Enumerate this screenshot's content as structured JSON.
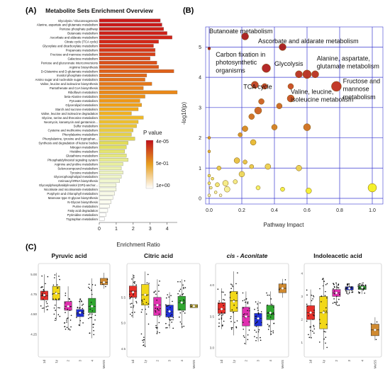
{
  "panels": {
    "a_letter": "(A)",
    "b_letter": "(B)",
    "c_letter": "(C)"
  },
  "chart_data": [
    {
      "type": "bar",
      "orientation": "horizontal",
      "title": "Metabolite Sets Enrichment Overview",
      "xlabel": "Enrichment Ratio",
      "xlim": [
        0,
        4.6
      ],
      "xticks": [
        "0",
        "1",
        "2",
        "3",
        "4"
      ],
      "legend": {
        "title": "P value",
        "ticks": [
          "4e-05",
          "5e-01",
          "1e+00"
        ],
        "colors": [
          "#c0101a",
          "#e8a020",
          "#ffffff"
        ],
        "placement": "right"
      },
      "categories": [
        "Glycolysis / Gluconeogenesis",
        "Alanine, aspartate and glutamate metabolism",
        "Pentose phosphate pathway",
        "Butanoate metabolism",
        "Ascorbate and aldarate metabolism",
        "Citrate cycle (TCA cycle)",
        "Glyoxylate and dicarboxylate metabolism",
        "Propanoate metabolism",
        "Fructose and mannose metabolism",
        "Galactose metabolism",
        "Pentose and glucuronate interconversions",
        "Arginine biosynthesis",
        "D-Glutamine and D-glutamate metabolism",
        "Inositol phosphate metabolism",
        "Amino sugar and nucleotide sugar metabolism",
        "Valine, leucine and isoleucine biosynthesis",
        "Pantothenate and CoA biosynthesis",
        "Riboflavin metabolism",
        "beta-Alanine metabolism",
        "Pyruvate metabolism",
        "Glycerolipid metabolism",
        "Starch and sucrose metabolism",
        "Valine, leucine and isoleucine degradation",
        "Glycine, serine and threonine metabolism",
        "Neomycin, kanamycin and gentamicin...",
        "Sulfur metabolism",
        "Cysteine and methionine metabolism",
        "Phenylalanine metabolism",
        "Phenylalanine, tyrosine and tryptophan...",
        "Synthesis and degradation of ketone bodies",
        "Nitrogen metabolism",
        "Histidine metabolism",
        "Glutathione metabolism",
        "Phosphatidylinositol signaling system",
        "Arginine and proline metabolism",
        "Selenocompound metabolism",
        "Tyrosine metabolism",
        "Glycerophospholipid metabolism",
        "Aminoacyl-tRNA biosynthesis",
        "Glycosylphosphatidylinositol (GPI)-anchor...",
        "Nicotinate and nicotinamide metabolism",
        "Porphyrin and chlorophyll metabolism",
        "Mannose type O-glycan biosynthesis",
        "N-Glycan biosynthesis",
        "Purine metabolism",
        "Fatty acid degradation",
        "Pyrimidine metabolism",
        "Tryptophan metabolism"
      ],
      "values": [
        3.6,
        3.7,
        3.8,
        4.0,
        4.3,
        3.5,
        3.2,
        3.3,
        3.3,
        3.0,
        3.4,
        3.5,
        4.4,
        2.8,
        2.7,
        3.1,
        2.6,
        4.6,
        2.7,
        2.4,
        2.5,
        2.3,
        1.9,
        2.6,
        2.3,
        2.2,
        2.0,
        1.9,
        2.1,
        1.7,
        1.6,
        1.5,
        1.6,
        1.7,
        1.4,
        1.3,
        1.4,
        1.3,
        1.2,
        1.0,
        1.0,
        0.9,
        0.8,
        0.7,
        0.6,
        0.5,
        0.4,
        0.3
      ],
      "pvalue_colors": [
        "#c81a1a",
        "#c81a1a",
        "#cc2018",
        "#cc2018",
        "#d02418",
        "#d22818",
        "#d43018",
        "#d63818",
        "#d84018",
        "#da4818",
        "#dc5018",
        "#de5818",
        "#e06018",
        "#e26818",
        "#e47018",
        "#e67818",
        "#e88018",
        "#ea8818",
        "#ec9018",
        "#ee9818",
        "#f0a018",
        "#f2a818",
        "#f0b020",
        "#eeb828",
        "#ecbe30",
        "#eac438",
        "#e8ca40",
        "#e6d048",
        "#e4d650",
        "#e2dc58",
        "#e2e060",
        "#e4e470",
        "#e6e880",
        "#e8ec90",
        "#eaf0a0",
        "#ecf2b0",
        "#eef4c0",
        "#f0f6c8",
        "#f2f8d0",
        "#f4f8d8",
        "#f6fae0",
        "#f8fae6",
        "#fafcec",
        "#fbfcf0",
        "#fcfdf4",
        "#fdfef8",
        "#fefefb",
        "#ffffff"
      ]
    },
    {
      "type": "scatter",
      "xlabel": "Pathway Impact",
      "ylabel": "-log10(p)",
      "xlim": [
        0,
        1.0
      ],
      "ylim": [
        0,
        5.5
      ],
      "xticks": [
        "0.0",
        "0.2",
        "0.4",
        "0.6",
        "0.8",
        "1.0"
      ],
      "yticks": [
        "0",
        "1",
        "2",
        "3",
        "4",
        "5"
      ],
      "grid": true,
      "points": [
        {
          "x": 0.22,
          "y": 5.35,
          "r": 5,
          "color": "#a81a1a"
        },
        {
          "x": 0.45,
          "y": 5.0,
          "r": 5,
          "color": "#a81a1a"
        },
        {
          "x": 0.0,
          "y": 4.95,
          "r": 2,
          "color": "#a81a1a"
        },
        {
          "x": 0.35,
          "y": 4.3,
          "r": 6,
          "color": "#b01e1e"
        },
        {
          "x": 0.55,
          "y": 4.1,
          "r": 5,
          "color": "#b83020"
        },
        {
          "x": 0.6,
          "y": 4.1,
          "r": 6,
          "color": "#b83020"
        },
        {
          "x": 0.65,
          "y": 4.1,
          "r": 5,
          "color": "#b83020"
        },
        {
          "x": 0.78,
          "y": 3.7,
          "r": 7,
          "color": "#c03020"
        },
        {
          "x": 0.28,
          "y": 3.75,
          "r": 5,
          "color": "#c04020"
        },
        {
          "x": 0.34,
          "y": 3.7,
          "r": 4,
          "color": "#c04020"
        },
        {
          "x": 0.5,
          "y": 3.7,
          "r": 4,
          "color": "#c84a20"
        },
        {
          "x": 0.5,
          "y": 3.3,
          "r": 5,
          "color": "#c85020"
        },
        {
          "x": 0.32,
          "y": 3.2,
          "r": 4,
          "color": "#cc6020"
        },
        {
          "x": 0.3,
          "y": 2.9,
          "r": 5,
          "color": "#cc6020"
        },
        {
          "x": 0.43,
          "y": 3.05,
          "r": 4,
          "color": "#cc6820"
        },
        {
          "x": 0.26,
          "y": 2.7,
          "r": 4,
          "color": "#d07020"
        },
        {
          "x": 0.6,
          "y": 2.35,
          "r": 5,
          "color": "#d07020"
        },
        {
          "x": 0.4,
          "y": 2.35,
          "r": 4,
          "color": "#d48020"
        },
        {
          "x": 0.22,
          "y": 2.3,
          "r": 4,
          "color": "#d88820"
        },
        {
          "x": 0.19,
          "y": 2.1,
          "r": 3,
          "color": "#d89020"
        },
        {
          "x": 0.0,
          "y": 2.0,
          "r": 2,
          "color": "#e09820"
        },
        {
          "x": 0.0,
          "y": 1.55,
          "r": 2,
          "color": "#e8b030"
        },
        {
          "x": 0.27,
          "y": 1.85,
          "r": 4,
          "color": "#e8b830"
        },
        {
          "x": 0.17,
          "y": 1.25,
          "r": 4,
          "color": "#e8c040"
        },
        {
          "x": 0.22,
          "y": 1.2,
          "r": 3,
          "color": "#e8c040"
        },
        {
          "x": 0.26,
          "y": 1.05,
          "r": 3,
          "color": "#eac848"
        },
        {
          "x": 0.06,
          "y": 1.0,
          "r": 3,
          "color": "#eac848"
        },
        {
          "x": 0.36,
          "y": 1.05,
          "r": 4,
          "color": "#ecd050"
        },
        {
          "x": 0.55,
          "y": 1.0,
          "r": 4,
          "color": "#ecd050"
        },
        {
          "x": 0.2,
          "y": 0.8,
          "r": 4,
          "color": "#eed858"
        },
        {
          "x": 0.0,
          "y": 0.75,
          "r": 2,
          "color": "#f0e060"
        },
        {
          "x": 0.02,
          "y": 0.65,
          "r": 2,
          "color": "#f0e060"
        },
        {
          "x": 0.0,
          "y": 0.5,
          "r": 2,
          "color": "#f2e670"
        },
        {
          "x": 0.05,
          "y": 0.45,
          "r": 3,
          "color": "#f2e670"
        },
        {
          "x": 0.1,
          "y": 0.5,
          "r": 4,
          "color": "#f4ea80"
        },
        {
          "x": 0.16,
          "y": 0.55,
          "r": 3,
          "color": "#f4ea80"
        },
        {
          "x": 0.11,
          "y": 0.3,
          "r": 4,
          "color": "#f6ee90"
        },
        {
          "x": 0.01,
          "y": 0.35,
          "r": 2,
          "color": "#f6ee90"
        },
        {
          "x": 0.04,
          "y": 0.2,
          "r": 2,
          "color": "#f8f2a0"
        },
        {
          "x": 0.0,
          "y": 0.1,
          "r": 2,
          "color": "#f8f4b0"
        },
        {
          "x": 0.07,
          "y": 0.1,
          "r": 2,
          "color": "#faf6c0"
        },
        {
          "x": 0.3,
          "y": 0.35,
          "r": 3,
          "color": "#f6f060"
        },
        {
          "x": 0.45,
          "y": 0.3,
          "r": 3,
          "color": "#f4f040"
        },
        {
          "x": 0.61,
          "y": 0.25,
          "r": 4,
          "color": "#f4f030"
        },
        {
          "x": 1.0,
          "y": 0.35,
          "r": 6,
          "color": "#f4f020"
        }
      ],
      "annotations": [
        {
          "text": "Butanoate metabolism",
          "x": 0.0,
          "y": 5.45
        },
        {
          "text": "Ascorbate and aldarate metabolism",
          "x": 0.3,
          "y": 5.12
        },
        {
          "text": "Carbon fixation in",
          "x": 0.04,
          "y": 4.68
        },
        {
          "text": "photosynthetic",
          "x": 0.04,
          "y": 4.42
        },
        {
          "text": "organisms",
          "x": 0.04,
          "y": 4.16
        },
        {
          "text": "Glycolysis",
          "x": 0.4,
          "y": 4.38
        },
        {
          "text": "Alanine, aspartate,",
          "x": 0.66,
          "y": 4.55
        },
        {
          "text": "glutamate metabolism",
          "x": 0.66,
          "y": 4.29
        },
        {
          "text": "TCA cycle",
          "x": 0.21,
          "y": 3.62
        },
        {
          "text": "Fructose and",
          "x": 0.82,
          "y": 3.8
        },
        {
          "text": "mannose",
          "x": 0.82,
          "y": 3.54
        },
        {
          "text": "metabolism",
          "x": 0.82,
          "y": 3.28
        },
        {
          "text": "Valine, leucine,",
          "x": 0.5,
          "y": 3.45
        },
        {
          "text": "isoleucine metabolism",
          "x": 0.5,
          "y": 3.19
        }
      ]
    },
    {
      "type": "box",
      "title": "Pyruvic acid",
      "categories": [
        "1d",
        "1y",
        "2",
        "3",
        "4",
        "MeSS"
      ],
      "ylim": [
        4.0,
        5.1
      ],
      "yticks": [
        "4.25",
        "4.50",
        "4.75",
        "5.00"
      ],
      "boxes": [
        {
          "q1": 4.68,
          "median": 4.73,
          "q3": 4.79,
          "min": 4.52,
          "max": 5.0,
          "mean": 4.74,
          "color": "#e8302a"
        },
        {
          "q1": 4.68,
          "median": 4.76,
          "q3": 4.85,
          "min": 4.42,
          "max": 5.02,
          "mean": 4.76,
          "color": "#f2d818"
        },
        {
          "q1": 4.55,
          "median": 4.6,
          "q3": 4.66,
          "min": 4.3,
          "max": 4.85,
          "mean": 4.6,
          "color": "#e030b0"
        },
        {
          "q1": 4.47,
          "median": 4.52,
          "q3": 4.56,
          "min": 4.35,
          "max": 4.7,
          "mean": 4.52,
          "color": "#2030d8"
        },
        {
          "q1": 4.52,
          "median": 4.6,
          "q3": 4.7,
          "min": 4.2,
          "max": 4.95,
          "mean": 4.6,
          "color": "#30a830"
        },
        {
          "q1": 4.87,
          "median": 4.9,
          "q3": 4.95,
          "min": 4.82,
          "max": 5.02,
          "mean": 4.9,
          "color": "#d08a30"
        }
      ]
    },
    {
      "type": "box",
      "title": "Citric acid",
      "categories": [
        "1d",
        "1y",
        "2",
        "3",
        "4",
        "MeSS"
      ],
      "ylim": [
        4.4,
        6.1
      ],
      "yticks": [
        "4.5",
        "5.0",
        "5.5"
      ],
      "boxes": [
        {
          "q1": 5.5,
          "median": 5.62,
          "q3": 5.72,
          "min": 5.1,
          "max": 5.95,
          "mean": 5.6,
          "color": "#e8302a"
        },
        {
          "q1": 5.35,
          "median": 5.55,
          "q3": 5.75,
          "min": 4.55,
          "max": 6.0,
          "mean": 5.55,
          "color": "#f2d818"
        },
        {
          "q1": 5.15,
          "median": 5.35,
          "q3": 5.5,
          "min": 4.8,
          "max": 5.85,
          "mean": 5.35,
          "color": "#e030b0"
        },
        {
          "q1": 5.12,
          "median": 5.22,
          "q3": 5.35,
          "min": 4.9,
          "max": 5.6,
          "mean": 5.23,
          "color": "#2030d8"
        },
        {
          "q1": 5.25,
          "median": 5.4,
          "q3": 5.52,
          "min": 4.9,
          "max": 5.85,
          "mean": 5.4,
          "color": "#30a830"
        },
        {
          "q1": 5.3,
          "median": 5.33,
          "q3": 5.36,
          "min": 5.3,
          "max": 5.36,
          "mean": 5.33,
          "color": "#c8b030"
        }
      ]
    },
    {
      "type": "box",
      "title": "cis - Aconitate",
      "categories": [
        "1d",
        "1y",
        "2",
        "3",
        "4",
        "MeSS"
      ],
      "ylim": [
        2.9,
        4.3
      ],
      "yticks": [
        "3.0",
        "3.5",
        "4.0"
      ],
      "boxes": [
        {
          "q1": 3.55,
          "median": 3.62,
          "q3": 3.72,
          "min": 3.3,
          "max": 3.95,
          "mean": 3.62,
          "color": "#e8302a"
        },
        {
          "q1": 3.58,
          "median": 3.75,
          "q3": 3.9,
          "min": 3.2,
          "max": 4.22,
          "mean": 3.74,
          "color": "#f2d818"
        },
        {
          "q1": 3.35,
          "median": 3.5,
          "q3": 3.65,
          "min": 3.05,
          "max": 3.9,
          "mean": 3.5,
          "color": "#e030b0"
        },
        {
          "q1": 3.35,
          "median": 3.47,
          "q3": 3.55,
          "min": 3.1,
          "max": 3.75,
          "mean": 3.47,
          "color": "#2030d8"
        },
        {
          "q1": 3.45,
          "median": 3.55,
          "q3": 3.68,
          "min": 3.2,
          "max": 3.9,
          "mean": 3.56,
          "color": "#30a830"
        },
        {
          "q1": 3.88,
          "median": 3.95,
          "q3": 4.02,
          "min": 3.8,
          "max": 4.1,
          "mean": 3.95,
          "color": "#d08a30"
        }
      ]
    },
    {
      "type": "box",
      "title": "Indoleacetic acid",
      "categories": [
        "1d",
        "1y",
        "2",
        "3",
        "4",
        "MeSS"
      ],
      "ylim": [
        0.5,
        4.3
      ],
      "yticks": [
        "1",
        "2",
        "3",
        "4"
      ],
      "boxes": [
        {
          "q1": 2.0,
          "median": 2.3,
          "q3": 2.6,
          "min": 1.2,
          "max": 3.3,
          "mean": 2.3,
          "color": "#e8302a"
        },
        {
          "q1": 1.6,
          "median": 2.3,
          "q3": 3.0,
          "min": 0.7,
          "max": 3.8,
          "mean": 2.3,
          "color": "#f2d818"
        },
        {
          "q1": 3.0,
          "median": 3.15,
          "q3": 3.3,
          "min": 2.6,
          "max": 3.6,
          "mean": 3.15,
          "color": "#e030b0"
        },
        {
          "q1": 3.28,
          "median": 3.35,
          "q3": 3.42,
          "min": 3.1,
          "max": 3.55,
          "mean": 3.35,
          "color": "#2030d8"
        },
        {
          "q1": 3.3,
          "median": 3.38,
          "q3": 3.45,
          "min": 3.1,
          "max": 3.6,
          "mean": 3.38,
          "color": "#30a830"
        },
        {
          "q1": 1.3,
          "median": 1.55,
          "q3": 1.8,
          "min": 1.1,
          "max": 2.1,
          "mean": 1.55,
          "color": "#d08a30"
        }
      ]
    }
  ]
}
